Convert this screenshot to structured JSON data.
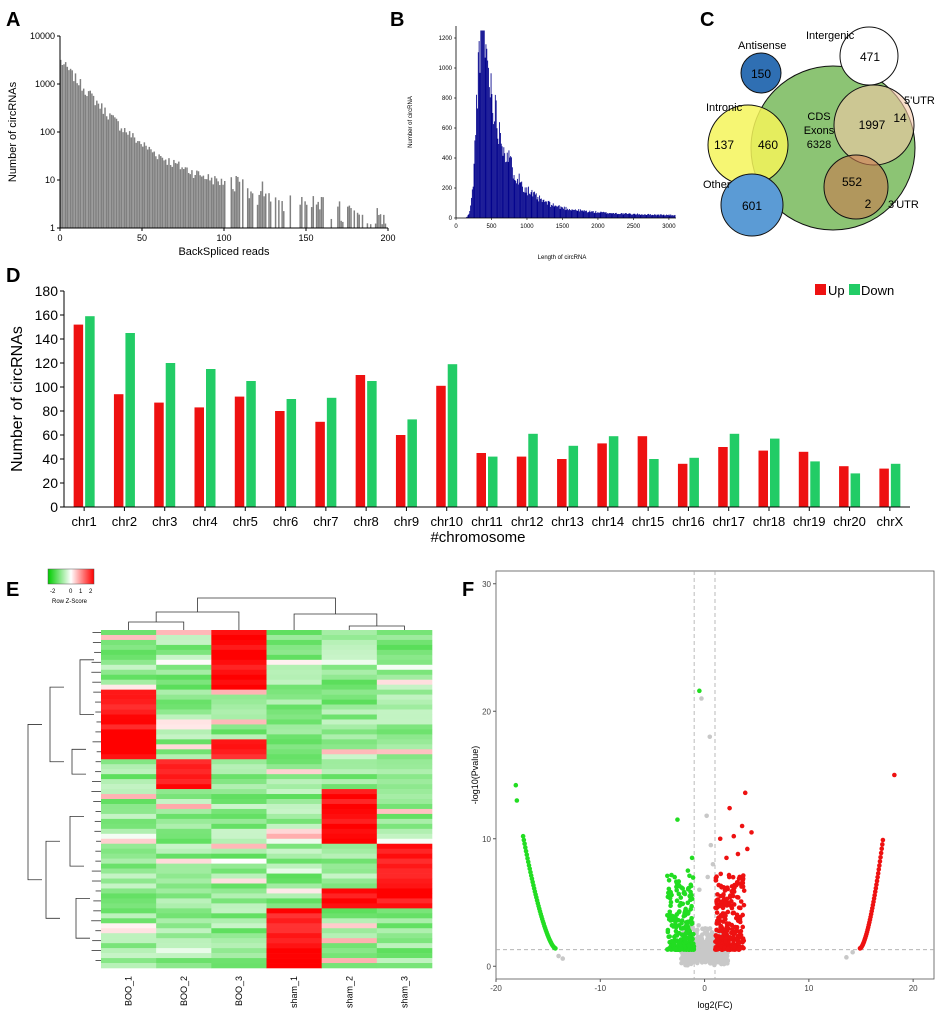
{
  "panel_labels": [
    "A",
    "B",
    "C",
    "D",
    "E",
    "F"
  ],
  "chart_data": [
    {
      "panel": "A",
      "type": "bar",
      "xlabel": "BackSpliced reads",
      "ylabel": "Number of circRNAs",
      "yscale": "log",
      "xlim": [
        0,
        200
      ],
      "ylim": [
        1,
        10000
      ],
      "xticks": [
        0,
        50,
        100,
        150,
        200
      ],
      "yticks": [
        1,
        10,
        100,
        1000,
        10000
      ],
      "ytick_labels": [
        "1",
        "10",
        "100",
        "1000",
        "10000"
      ],
      "color": "#808080"
    },
    {
      "panel": "B",
      "type": "bar",
      "xlabel": "Length of circRNA",
      "ylabel": "Number of circRNA",
      "xlim": [
        0,
        3100
      ],
      "ylim": [
        0,
        1280
      ],
      "xticks": [
        0,
        500,
        1000,
        1500,
        2000,
        2500,
        3000
      ],
      "yticks": [
        0,
        200,
        400,
        600,
        800,
        1000,
        1200
      ],
      "peak": {
        "x": 350,
        "y": 1250
      },
      "color": "#00008b"
    },
    {
      "panel": "C",
      "type": "venn",
      "circles": [
        {
          "label": "Antisense",
          "value": "150",
          "color": "#2f6fb3"
        },
        {
          "label": "Intergenic",
          "value": "471",
          "color": "#ffffff"
        },
        {
          "label": "Intronic",
          "value": "137",
          "color": "#ffff66"
        },
        {
          "label": "CDS",
          "value": "6328",
          "color": "#8cc474"
        },
        {
          "label": "5'UTR",
          "value": "14",
          "color": "#f6c9a9"
        },
        {
          "label": "3'UTR",
          "value": "2",
          "color": "#e9a07a"
        },
        {
          "label": "Other",
          "value": "601",
          "color": "#5b9bd5"
        }
      ],
      "cds_label_lines": [
        "CDS",
        "Exons",
        "6328"
      ],
      "overlaps": [
        {
          "between": "Intronic-CDS",
          "value": "460"
        },
        {
          "between": "CDS-5'UTR",
          "value": "1997"
        },
        {
          "between": "CDS-3'UTR",
          "value": "552"
        }
      ]
    },
    {
      "panel": "D",
      "type": "bar",
      "title": "",
      "xlabel": "#chromosome",
      "ylabel": "Number of circRNAs",
      "ylim": [
        0,
        180
      ],
      "yticks": [
        0,
        20,
        40,
        60,
        80,
        100,
        120,
        140,
        160,
        180
      ],
      "categories": [
        "chr1",
        "chr2",
        "chr3",
        "chr4",
        "chr5",
        "chr6",
        "chr7",
        "chr8",
        "chr9",
        "chr10",
        "chr11",
        "chr12",
        "chr13",
        "chr14",
        "chr15",
        "chr16",
        "chr17",
        "chr18",
        "chr19",
        "chr20",
        "chrX"
      ],
      "series": [
        {
          "name": "Up",
          "color": "#ee1111",
          "values": [
            152,
            94,
            87,
            83,
            92,
            80,
            71,
            110,
            60,
            101,
            45,
            42,
            40,
            53,
            59,
            36,
            50,
            47,
            46,
            34,
            32
          ]
        },
        {
          "name": "Down",
          "color": "#22cc66",
          "values": [
            159,
            145,
            120,
            115,
            105,
            90,
            91,
            105,
            73,
            119,
            42,
            61,
            51,
            59,
            40,
            41,
            61,
            57,
            38,
            28,
            36
          ]
        }
      ],
      "legend_position": "top-right"
    },
    {
      "panel": "E",
      "type": "heatmap",
      "columns": [
        "BOO_1",
        "BOO_2",
        "BOO_3",
        "sham_1",
        "sham_2",
        "sham_3"
      ],
      "color_key": {
        "title": "Row Z-Score",
        "ticks": [
          "-2",
          "0",
          "1",
          "2"
        ],
        "low": "#00cc00",
        "mid": "#ffffff",
        "high": "#ff0000"
      },
      "row_groups": [
        {
          "high": [
            2
          ],
          "rows": 12
        },
        {
          "high": [
            0
          ],
          "rows": 10
        },
        {
          "high": [
            0,
            2
          ],
          "rows": 4
        },
        {
          "high": [
            1
          ],
          "rows": 6
        },
        {
          "high": [
            4
          ],
          "rows": 11
        },
        {
          "high": [
            5
          ],
          "rows": 9
        },
        {
          "high": [
            4,
            5
          ],
          "rows": 4
        },
        {
          "high": [
            3
          ],
          "rows": 12
        }
      ]
    },
    {
      "panel": "F",
      "type": "scatter",
      "xlabel": "log2(FC)",
      "ylabel": "-log10(Pvalue)",
      "xlim": [
        -20,
        22
      ],
      "ylim": [
        -1,
        31
      ],
      "xticks": [
        -20,
        -10,
        0,
        10,
        20
      ],
      "yticks": [
        0,
        10,
        20,
        30
      ],
      "thresholds": {
        "fc": [
          -1,
          1
        ],
        "p": 1.3
      },
      "up_color": "#ee1111",
      "down_color": "#22dd22",
      "ns_color": "#c8c8c8"
    }
  ]
}
